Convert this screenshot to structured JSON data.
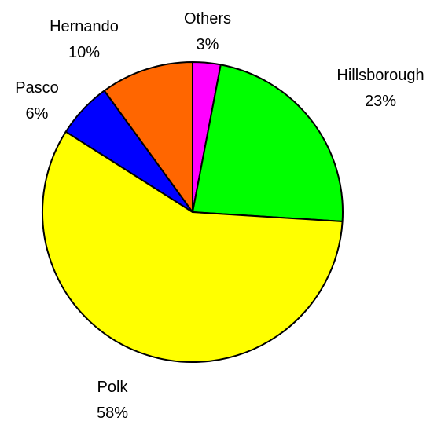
{
  "chart_data": {
    "type": "pie",
    "title": "",
    "start_angle_deg": 0,
    "direction": "clockwise",
    "slices": [
      {
        "label": "Others",
        "value": 3,
        "value_label": "3%",
        "color": "#FF00FF"
      },
      {
        "label": "Hillsborough",
        "value": 23,
        "value_label": "23%",
        "color": "#00FF00"
      },
      {
        "label": "Polk",
        "value": 58,
        "value_label": "58%",
        "color": "#FFFF00"
      },
      {
        "label": "Pasco",
        "value": 6,
        "value_label": "6%",
        "color": "#0000FF"
      },
      {
        "label": "Hernando",
        "value": 10,
        "value_label": "10%",
        "color": "#FF6600"
      }
    ]
  }
}
